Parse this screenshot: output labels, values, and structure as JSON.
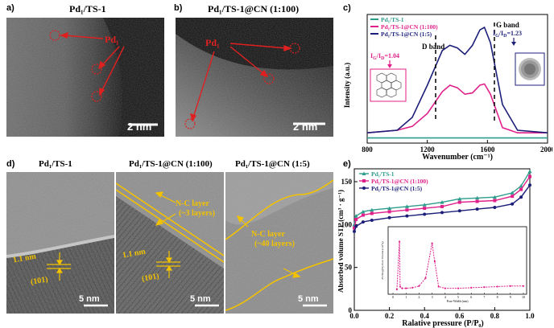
{
  "panels": {
    "a": {
      "label": "a)",
      "title": "Pd₁/TS-1",
      "site_label": "Pd₁",
      "scale": "2 nm"
    },
    "b": {
      "label": "b)",
      "title": "Pd₁/TS-1@CN (1:100)",
      "site_label": "Pd₁",
      "scale": "2 nm"
    },
    "c": {
      "label": "c)"
    },
    "d": {
      "label": "d)",
      "titles": [
        "Pd₁/TS-1",
        "Pd₁/TS-1@CN (1:100)",
        "Pd₁/TS-1@CN (1:5)"
      ],
      "spacing": "1.1 nm",
      "plane": "(101)",
      "nc_layer_1": "N-C layer",
      "nc_layer_1_count": "(~3 layers)",
      "nc_layer_2": "N-C layer",
      "nc_layer_2_count": "(~40 layers)",
      "scale": "5 nm"
    },
    "e": {
      "label": "e)"
    }
  },
  "colors": {
    "ts1": "#2e9c8c",
    "cn100": "#e0208a",
    "cn5": "#1c1f78",
    "annot_red": "#e02020",
    "annot_yellow": "#f2c200"
  },
  "chart_data": [
    {
      "type": "line",
      "title": "",
      "xlabel": "Wavenumber (cm⁻¹)",
      "ylabel": "Intensity (a.u.)",
      "xlim": [
        800,
        2000
      ],
      "xticks": [
        800,
        1200,
        1600,
        2000
      ],
      "grid": false,
      "legend": "top-left",
      "annotations": [
        "D band",
        "G band",
        "I_G/I_D=1.04",
        "I_G/I_D=1.23"
      ],
      "series": [
        {
          "name": "Pd₁/TS-1",
          "x": [
            800,
            1000,
            1200,
            1400,
            1600,
            1800,
            2000
          ],
          "y": [
            0.04,
            0.04,
            0.04,
            0.04,
            0.04,
            0.04,
            0.04
          ]
        },
        {
          "name": "Pd₁/TS-1@CN (1:100)",
          "x": [
            800,
            1000,
            1100,
            1200,
            1300,
            1350,
            1400,
            1450,
            1500,
            1550,
            1580,
            1620,
            1700,
            1800,
            2000
          ],
          "y": [
            0.08,
            0.1,
            0.13,
            0.23,
            0.4,
            0.45,
            0.43,
            0.38,
            0.39,
            0.45,
            0.46,
            0.38,
            0.12,
            0.08,
            0.08
          ]
        },
        {
          "name": "Pd₁/TS-1@CN (1:5)",
          "x": [
            800,
            1000,
            1100,
            1200,
            1300,
            1350,
            1400,
            1450,
            1500,
            1550,
            1580,
            1620,
            1700,
            1800,
            2000
          ],
          "y": [
            0.08,
            0.1,
            0.2,
            0.45,
            0.72,
            0.76,
            0.74,
            0.69,
            0.76,
            0.88,
            0.9,
            0.78,
            0.3,
            0.1,
            0.08
          ]
        }
      ]
    },
    {
      "type": "line",
      "title": "",
      "xlabel": "Ralative pressure (P/P₀)",
      "ylabel": "Absorbed volume STP (cm³ · g⁻¹)",
      "xlim": [
        0,
        1.0
      ],
      "ylim": [
        0,
        165
      ],
      "xticks": [
        "0.0",
        "0.2",
        "0.4",
        "0.6",
        "0.8",
        "1.0"
      ],
      "yticks": [
        "0",
        "50",
        "100",
        "150"
      ],
      "grid": false,
      "legend": "top-left",
      "series": [
        {
          "name": "Pd₁/TS-1",
          "x": [
            0.0,
            0.01,
            0.05,
            0.1,
            0.2,
            0.3,
            0.4,
            0.5,
            0.6,
            0.7,
            0.8,
            0.9,
            0.95,
            1.0
          ],
          "y": [
            100,
            110,
            115,
            117,
            119,
            121,
            123,
            126,
            130,
            131,
            132,
            137,
            145,
            162
          ]
        },
        {
          "name": "Pd₁/TS-1@CN (1:100)",
          "x": [
            0.0,
            0.01,
            0.05,
            0.1,
            0.2,
            0.3,
            0.4,
            0.5,
            0.6,
            0.7,
            0.8,
            0.9,
            0.95,
            1.0
          ],
          "y": [
            96,
            106,
            111,
            113,
            115,
            117,
            119,
            121,
            126,
            127,
            128,
            133,
            141,
            156
          ]
        },
        {
          "name": "Pd₁/TS-1@CN (1:5)",
          "x": [
            0.0,
            0.01,
            0.05,
            0.1,
            0.2,
            0.3,
            0.4,
            0.5,
            0.6,
            0.7,
            0.8,
            0.9,
            0.95,
            1.0
          ],
          "y": [
            92,
            98,
            103,
            105,
            108,
            110,
            112,
            114,
            116,
            118,
            120,
            124,
            132,
            146
          ]
        }
      ],
      "inset": {
        "xlabel": "Pore Width (nm)",
        "ylabel": "dV/dlog(W) Pore Volume (cm³/g)",
        "xlim": [
          0,
          10
        ],
        "xticks": [
          "0",
          "1",
          "2",
          "3",
          "4",
          "5",
          "6",
          "7",
          "8",
          "9",
          "10"
        ],
        "series": [
          {
            "x": [
              0.3,
              0.5,
              0.55,
              0.7,
              1.0,
              1.5,
              2.0,
              2.5,
              3.0,
              3.2,
              3.5,
              4,
              5,
              6,
              7,
              8,
              9,
              10
            ],
            "y": [
              0.0,
              0.85,
              0.05,
              0.02,
              0.02,
              0.03,
              0.06,
              0.2,
              0.82,
              0.5,
              0.05,
              0.02,
              0.02,
              0.03,
              0.04,
              0.05,
              0.06,
              0.06
            ]
          }
        ]
      }
    }
  ]
}
